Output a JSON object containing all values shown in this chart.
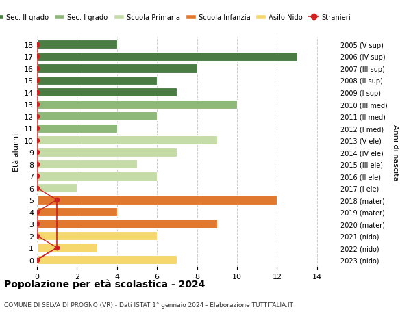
{
  "ages": [
    18,
    17,
    16,
    15,
    14,
    13,
    12,
    11,
    10,
    9,
    8,
    7,
    6,
    5,
    4,
    3,
    2,
    1,
    0
  ],
  "right_labels": [
    "2005 (V sup)",
    "2006 (IV sup)",
    "2007 (III sup)",
    "2008 (II sup)",
    "2009 (I sup)",
    "2010 (III med)",
    "2011 (II med)",
    "2012 (I med)",
    "2013 (V ele)",
    "2014 (IV ele)",
    "2015 (III ele)",
    "2016 (II ele)",
    "2017 (I ele)",
    "2018 (mater)",
    "2019 (mater)",
    "2020 (mater)",
    "2021 (nido)",
    "2022 (nido)",
    "2023 (nido)"
  ],
  "bar_values": [
    4,
    13,
    8,
    6,
    7,
    10,
    6,
    4,
    9,
    7,
    5,
    6,
    2,
    12,
    4,
    9,
    6,
    3,
    7
  ],
  "bar_colors": [
    "#4a7c44",
    "#4a7c44",
    "#4a7c44",
    "#4a7c44",
    "#4a7c44",
    "#8db87a",
    "#8db87a",
    "#8db87a",
    "#c5dba8",
    "#c5dba8",
    "#c5dba8",
    "#c5dba8",
    "#c5dba8",
    "#e07830",
    "#e07830",
    "#e07830",
    "#f5d76e",
    "#f5d76e",
    "#f5d76e"
  ],
  "stranieri_ages": [
    18,
    17,
    16,
    15,
    14,
    13,
    12,
    11,
    10,
    9,
    8,
    7,
    6,
    5,
    4,
    3,
    2,
    1,
    0
  ],
  "stranieri_values": [
    0,
    0,
    0,
    0,
    0,
    0,
    0,
    0,
    0,
    0,
    0,
    0,
    0,
    1,
    0,
    0,
    0,
    1,
    0
  ],
  "legend_labels": [
    "Sec. II grado",
    "Sec. I grado",
    "Scuola Primaria",
    "Scuola Infanzia",
    "Asilo Nido",
    "Stranieri"
  ],
  "legend_colors": [
    "#4a7c44",
    "#8db87a",
    "#c5dba8",
    "#e07830",
    "#f5d76e",
    "#cc2222"
  ],
  "xlabel_values": [
    0,
    2,
    4,
    6,
    8,
    10,
    12,
    14
  ],
  "xlim": [
    0,
    15
  ],
  "title": "Popolazione per età scolastica - 2024",
  "subtitle": "COMUNE DI SELVA DI PROGNO (VR) - Dati ISTAT 1° gennaio 2024 - Elaborazione TUTTITALIA.IT",
  "ylabel_left": "Età alunni",
  "ylabel_right": "Anni di nascita",
  "bg_color": "#ffffff",
  "grid_color": "#cccccc"
}
